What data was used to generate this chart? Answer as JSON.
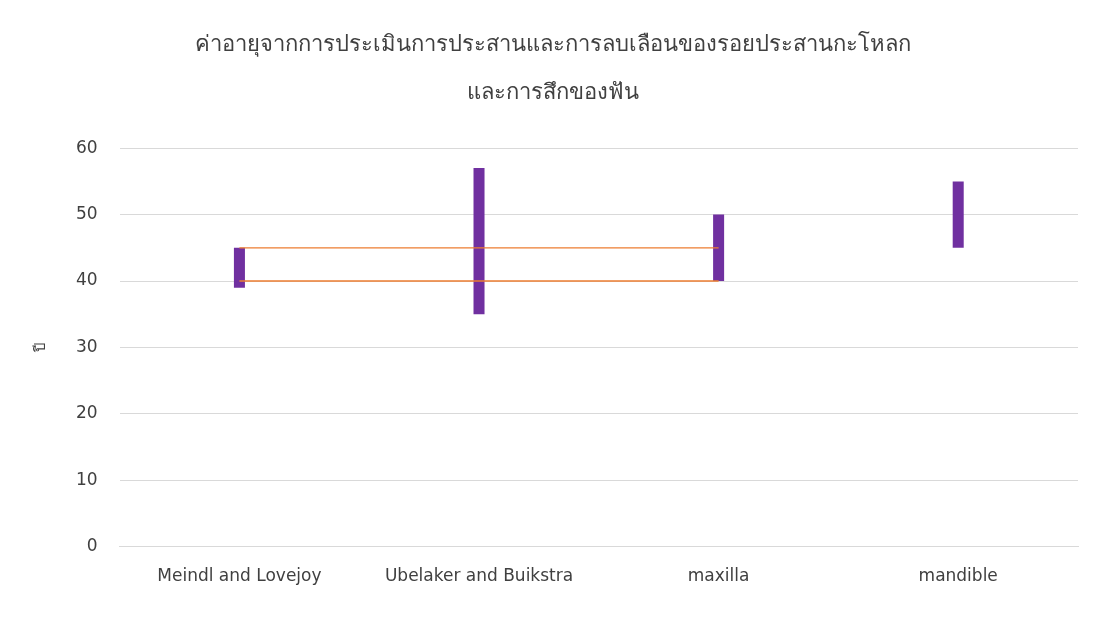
{
  "chart_data": {
    "type": "bar",
    "title": "ค่าอายุจากการประเมินการประสานและการลบเลือนของรอยประสานกะโหลก และการสึกของฟัน",
    "ylabel": "ปี",
    "categories": [
      "Meindl and Lovejoy",
      "Ubelaker and Buikstra",
      "maxilla",
      "mandible"
    ],
    "series": [
      {
        "color": "#7030a0",
        "base": [
          39,
          35,
          40,
          45
        ],
        "values": [
          6,
          22,
          10,
          10
        ]
      },
      {
        "type": "line",
        "color": "#ed7d31",
        "values": [
          45,
          45,
          45,
          null
        ]
      },
      {
        "type": "line",
        "color": "#ed7d31",
        "values": [
          40,
          40,
          40,
          null
        ]
      }
    ],
    "ylim": [
      0,
      60
    ],
    "yticks": [
      0,
      10,
      20,
      30,
      40,
      50,
      60
    ],
    "grid": "y",
    "legend": false,
    "marker": "none"
  }
}
